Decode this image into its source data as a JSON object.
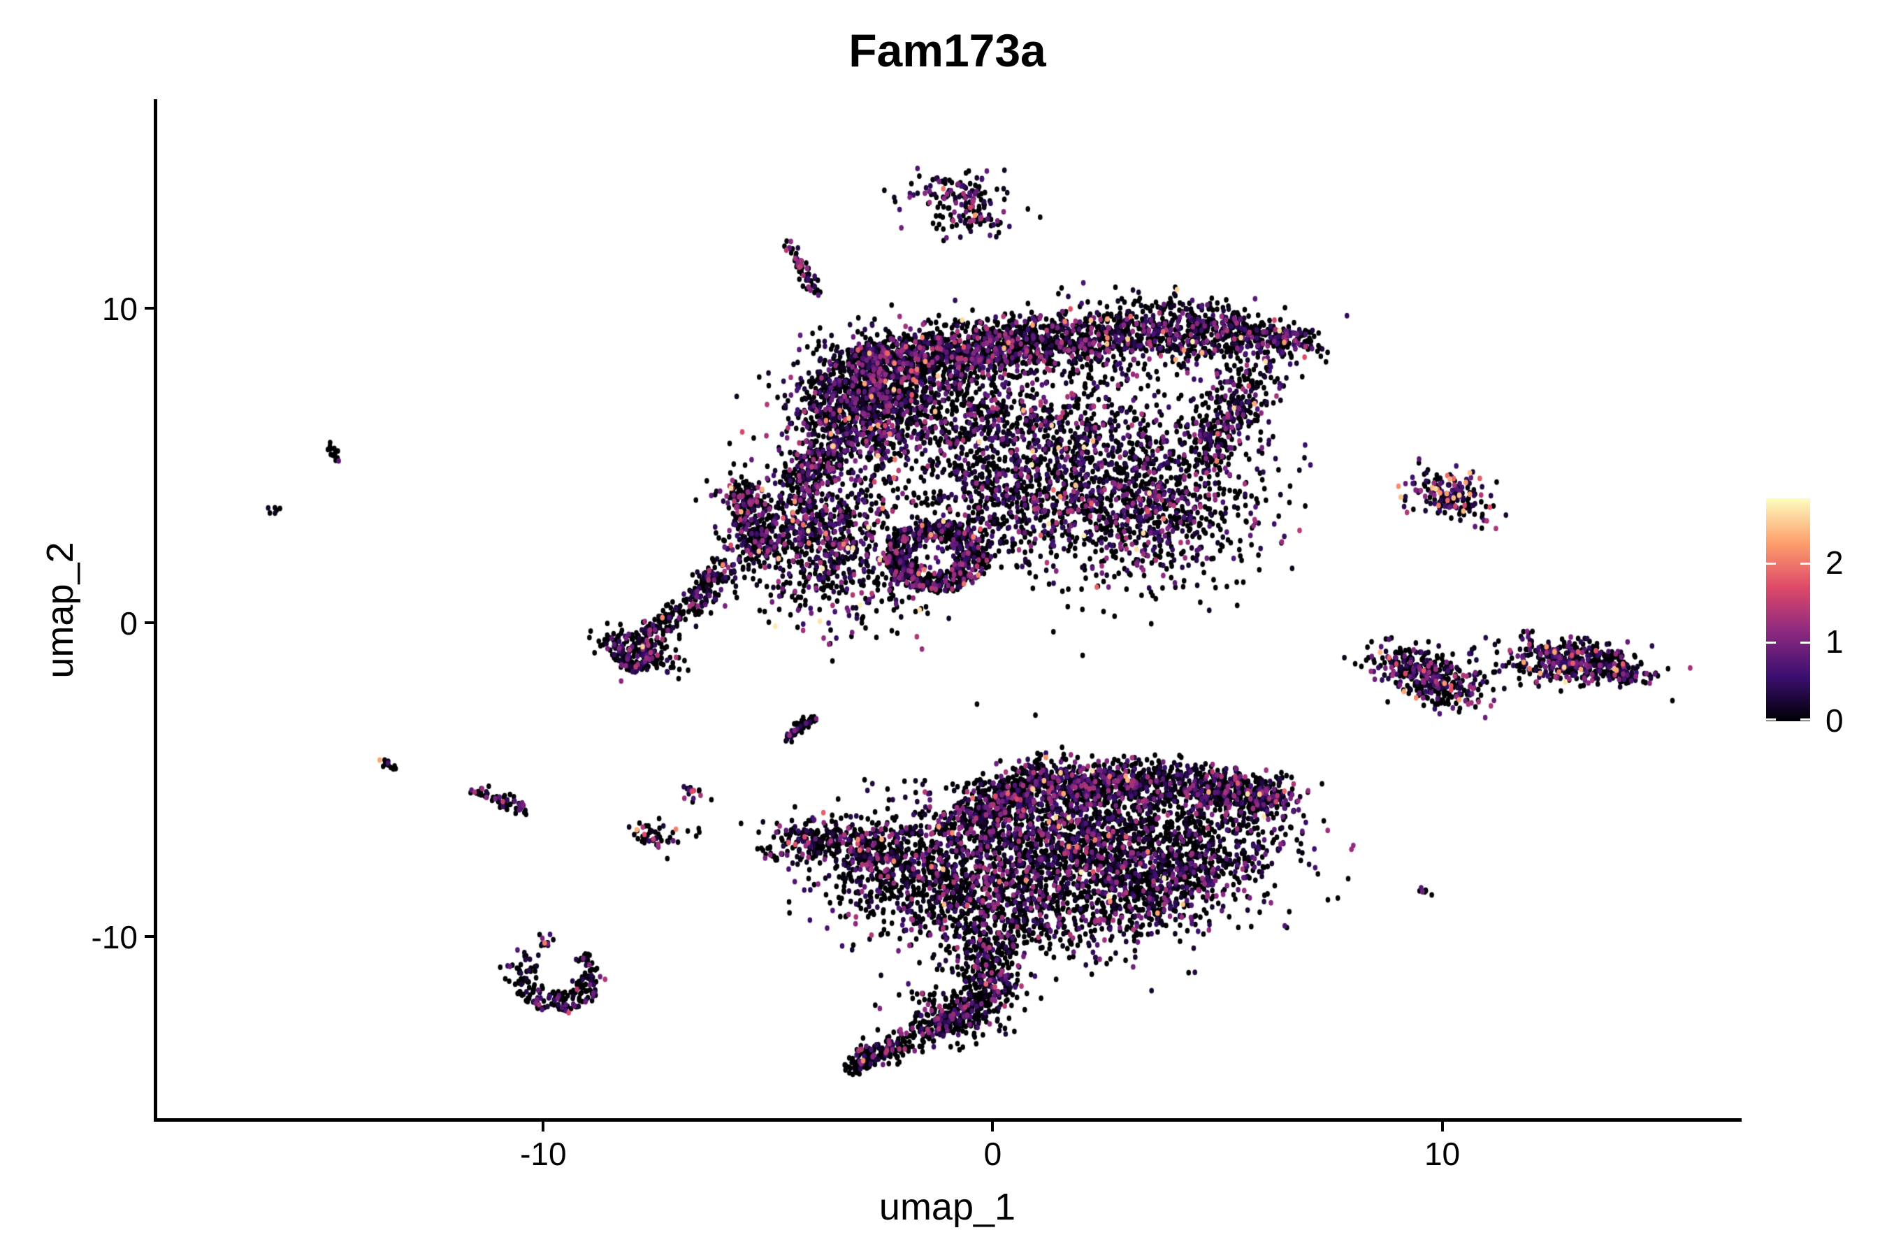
{
  "title": "Fam173a",
  "axes": {
    "x_label": "umap_1",
    "y_label": "umap_2",
    "x_ticks": [
      -10,
      0,
      10
    ],
    "y_ticks": [
      10,
      0,
      -10
    ]
  },
  "legend": {
    "tick_values": [
      0,
      1,
      2
    ],
    "domain_max": 2.82
  },
  "chart_data": {
    "type": "scatter",
    "title": "Fam173a",
    "xlabel": "umap_1",
    "ylabel": "umap_2",
    "xlim": [
      -18.62,
      16.6
    ],
    "ylim": [
      -15.82,
      16.6
    ],
    "grid": false,
    "point_rx": 3.3,
    "point_ry": 4.0,
    "colorbar": {
      "label_values": [
        0,
        1,
        2
      ],
      "domain": [
        0,
        2.82
      ],
      "colormap": "magma",
      "position": "right"
    },
    "colormap_stops": [
      [
        0.0,
        "#000004"
      ],
      [
        0.2,
        "#3b0f70"
      ],
      [
        0.4,
        "#8c2981"
      ],
      [
        0.6,
        "#de4968"
      ],
      [
        0.8,
        "#fe9f6d"
      ],
      [
        1.0,
        "#fcfdbf"
      ]
    ],
    "clusters": [
      {
        "name": "top-blob",
        "kind": "blob",
        "cx": -0.75,
        "cy": 13.55,
        "sx": 0.55,
        "sy": 0.42,
        "rot": -10,
        "n": 120,
        "p0": 0.6,
        "hot": 0.03
      },
      {
        "name": "top-blob-lower",
        "kind": "blob",
        "cx": -0.4,
        "cy": 12.75,
        "sx": 0.5,
        "sy": 0.3,
        "rot": 0,
        "n": 45,
        "p0": 0.65,
        "hot": 0.02
      },
      {
        "name": "streak-upper",
        "kind": "line",
        "x1": -4.56,
        "y1": 12.0,
        "x2": -3.95,
        "y2": 10.55,
        "w": 0.1,
        "n": 60,
        "p0": 0.5,
        "hot": 0.02
      },
      {
        "name": "knot-left",
        "kind": "blob",
        "cx": -2.95,
        "cy": 7.0,
        "sx": 0.75,
        "sy": 0.95,
        "rot": -15,
        "n": 950,
        "p0": 0.58,
        "hot": 0.03
      },
      {
        "name": "band-left",
        "kind": "line",
        "x1": -3.05,
        "y1": 8.2,
        "x2": 1.0,
        "y2": 8.95,
        "w": 0.42,
        "n": 1050,
        "p0": 0.58,
        "hot": 0.03
      },
      {
        "name": "band-right",
        "kind": "line",
        "x1": 1.0,
        "y1": 8.95,
        "x2": 5.2,
        "y2": 9.3,
        "w": 0.5,
        "n": 800,
        "p0": 0.58,
        "hot": 0.03
      },
      {
        "name": "band-tip",
        "kind": "line",
        "x1": 5.2,
        "y1": 9.25,
        "x2": 6.9,
        "y2": 8.85,
        "w": 0.33,
        "n": 280,
        "p0": 0.6,
        "hot": 0.03
      },
      {
        "name": "under-band",
        "kind": "blob",
        "cx": -1.2,
        "cy": 6.9,
        "sx": 1.25,
        "sy": 0.95,
        "rot": 0,
        "n": 480,
        "p0": 0.62,
        "hot": 0.02
      },
      {
        "name": "mid-field",
        "kind": "blob",
        "cx": 1.6,
        "cy": 5.3,
        "sx": 1.9,
        "sy": 1.55,
        "rot": -8,
        "n": 1300,
        "p0": 0.6,
        "hot": 0.025
      },
      {
        "name": "right-arc",
        "kind": "line",
        "x1": 5.9,
        "y1": 8.0,
        "x2": 4.6,
        "y2": 5.2,
        "w": 0.38,
        "n": 300,
        "p0": 0.62,
        "hot": 0.02
      },
      {
        "name": "right-lobe",
        "kind": "blob",
        "cx": 3.4,
        "cy": 3.4,
        "sx": 1.25,
        "sy": 1.15,
        "rot": 0,
        "n": 650,
        "p0": 0.6,
        "hot": 0.03
      },
      {
        "name": "neck-top",
        "kind": "line",
        "x1": -3.35,
        "y1": 5.9,
        "x2": -4.4,
        "y2": 4.2,
        "w": 0.3,
        "n": 240,
        "p0": 0.6,
        "hot": 0.02
      },
      {
        "name": "left-mid",
        "kind": "blob",
        "cx": -4.0,
        "cy": 3.1,
        "sx": 1.0,
        "sy": 0.8,
        "rot": 5,
        "n": 600,
        "p0": 0.55,
        "hot": 0.04
      },
      {
        "name": "left-mid-wall",
        "kind": "line",
        "x1": -5.6,
        "y1": 4.3,
        "x2": -5.15,
        "y2": 2.0,
        "w": 0.22,
        "n": 230,
        "p0": 0.6,
        "hot": 0.02
      },
      {
        "name": "left-mid-skirt",
        "kind": "blob",
        "cx": -3.3,
        "cy": 1.3,
        "sx": 1.05,
        "sy": 0.8,
        "rot": 0,
        "n": 280,
        "p0": 0.58,
        "hot": 0.05
      },
      {
        "name": "left-mid-tail",
        "kind": "line",
        "x1": -6.0,
        "y1": 1.8,
        "x2": -6.75,
        "y2": 0.5,
        "w": 0.2,
        "n": 120,
        "p0": 0.62,
        "hot": 0.02
      },
      {
        "name": "ring-lower",
        "kind": "ring",
        "cx": -1.25,
        "cy": 2.1,
        "r0": 0.5,
        "r1": 1.15,
        "a0": 0,
        "a1": 360,
        "n": 620,
        "p0": 0.6,
        "hot": 0.03
      },
      {
        "name": "connector",
        "kind": "blob",
        "cx": 0.3,
        "cy": 3.5,
        "sx": 0.9,
        "sy": 0.85,
        "rot": 0,
        "n": 240,
        "p0": 0.62,
        "hot": 0.02
      },
      {
        "name": "hook",
        "kind": "blob",
        "cx": -7.95,
        "cy": -0.85,
        "sx": 0.5,
        "sy": 0.3,
        "rot": -20,
        "n": 150,
        "p0": 0.68,
        "hot": 0.02
      },
      {
        "name": "hook-curl",
        "kind": "ring",
        "cx": -7.95,
        "cy": -1.15,
        "r0": 0.18,
        "r1": 0.42,
        "a0": 120,
        "a1": 420,
        "n": 90,
        "p0": 0.68,
        "hot": 0.02
      },
      {
        "name": "hook-chain",
        "kind": "line",
        "x1": -6.75,
        "y1": 0.5,
        "x2": -7.9,
        "y2": -0.7,
        "w": 0.22,
        "n": 130,
        "p0": 0.7,
        "hot": 0.01
      },
      {
        "name": "mid-streak",
        "kind": "line",
        "x1": -4.65,
        "y1": -3.72,
        "x2": -3.97,
        "y2": -3.02,
        "w": 0.07,
        "n": 55,
        "p0": 0.72,
        "hot": 0.01
      },
      {
        "name": "b-nose-dash",
        "kind": "line",
        "x1": -5.15,
        "y1": -7.25,
        "x2": -4.75,
        "y2": -7.5,
        "w": 0.08,
        "n": 14,
        "p0": 0.8,
        "hot": 0
      },
      {
        "name": "b-nose",
        "kind": "line",
        "x1": -4.65,
        "y1": -6.8,
        "x2": -2.4,
        "y2": -7.3,
        "w": 0.32,
        "n": 280,
        "p0": 0.62,
        "hot": 0.03
      },
      {
        "name": "b-left-body",
        "kind": "blob",
        "cx": -1.5,
        "cy": -8.0,
        "sx": 1.1,
        "sy": 1.0,
        "rot": 0,
        "n": 800,
        "p0": 0.62,
        "hot": 0.02,
        "ymax": -6.1
      },
      {
        "name": "b-main-body",
        "kind": "blob",
        "cx": 2.1,
        "cy": -7.0,
        "sx": 1.9,
        "sy": 1.2,
        "rot": -8,
        "n": 2100,
        "p0": 0.6,
        "hot": 0.02,
        "ymax": -5.0
      },
      {
        "name": "b-top-band",
        "kind": "line",
        "x1": 0.6,
        "y1": -5.05,
        "x2": 4.35,
        "y2": -5.1,
        "w": 0.38,
        "n": 650,
        "p0": 0.6,
        "hot": 0.02
      },
      {
        "name": "b-topleft-edge",
        "kind": "line",
        "x1": -0.6,
        "y1": -6.2,
        "x2": 0.7,
        "y2": -5.3,
        "w": 0.3,
        "n": 200,
        "p0": 0.6,
        "hot": 0.02
      },
      {
        "name": "b-right-tip",
        "kind": "line",
        "x1": 4.5,
        "y1": -5.1,
        "x2": 6.35,
        "y2": -5.55,
        "w": 0.35,
        "n": 320,
        "p0": 0.58,
        "hot": 0.03
      },
      {
        "name": "b-tip-knot",
        "kind": "blob",
        "cx": 6.1,
        "cy": -5.55,
        "sx": 0.3,
        "sy": 0.28,
        "rot": 0,
        "n": 80,
        "p0": 0.55,
        "hot": 0.05
      },
      {
        "name": "b-diag-lower",
        "kind": "line",
        "x1": 2.5,
        "y1": -9.7,
        "x2": 5.7,
        "y2": -6.7,
        "w": 0.55,
        "n": 420,
        "p0": 0.64,
        "hot": 0.015
      },
      {
        "name": "b-lower-bulge",
        "kind": "blob",
        "cx": 0.8,
        "cy": -9.3,
        "sx": 1.2,
        "sy": 0.8,
        "rot": 0,
        "n": 450,
        "p0": 0.66,
        "hot": 0.015
      },
      {
        "name": "b-neck",
        "kind": "line",
        "x1": 0.0,
        "y1": -10.0,
        "x2": -0.2,
        "y2": -12.4,
        "w": 0.38,
        "n": 340,
        "p0": 0.72,
        "hot": 0.01
      },
      {
        "name": "b-bend",
        "kind": "blob",
        "cx": -1.0,
        "cy": -12.5,
        "sx": 0.55,
        "sy": 0.4,
        "rot": -30,
        "n": 140,
        "p0": 0.7,
        "hot": 0.01
      },
      {
        "name": "b-tail",
        "kind": "line",
        "x1": -0.5,
        "y1": -12.35,
        "x2": -2.6,
        "y2": -13.75,
        "w": 0.22,
        "n": 240,
        "p0": 0.75,
        "hot": 0.008
      },
      {
        "name": "b-tail-tip",
        "kind": "line",
        "x1": -2.6,
        "y1": -13.7,
        "x2": -3.1,
        "y2": -14.2,
        "w": 0.14,
        "n": 80,
        "p0": 0.78,
        "hot": 0.005
      },
      {
        "name": "r-upper",
        "kind": "blob",
        "cx": 10.2,
        "cy": 4.05,
        "sx": 0.5,
        "sy": 0.38,
        "rot": -30,
        "n": 170,
        "p0": 0.42,
        "hot": 0.15
      },
      {
        "name": "r-mid-left",
        "kind": "blob",
        "cx": 9.75,
        "cy": -1.7,
        "sx": 0.72,
        "sy": 0.38,
        "rot": -33,
        "n": 360,
        "p0": 0.55,
        "hot": 0.06
      },
      {
        "name": "r-bridge",
        "kind": "line",
        "x1": 11.15,
        "y1": -1.35,
        "x2": 12.0,
        "y2": -1.5,
        "w": 0.05,
        "n": 7,
        "p0": 0.7,
        "hot": 0
      },
      {
        "name": "r-mid-right",
        "kind": "blob",
        "cx": 13.0,
        "cy": -1.25,
        "sx": 0.78,
        "sy": 0.36,
        "rot": -12,
        "n": 430,
        "p0": 0.56,
        "hot": 0.06
      },
      {
        "name": "r-tip",
        "kind": "line",
        "x1": 13.9,
        "y1": -1.6,
        "x2": 14.25,
        "y2": -1.85,
        "w": 0.12,
        "n": 50,
        "p0": 0.6,
        "hot": 0.04
      },
      {
        "name": "r-lower-dash",
        "kind": "line",
        "x1": 9.5,
        "y1": -8.45,
        "x2": 9.72,
        "y2": -8.72,
        "w": 0.05,
        "n": 9,
        "p0": 0.85,
        "hot": 0
      },
      {
        "name": "s-dash-upleft",
        "kind": "line",
        "x1": -14.85,
        "y1": 5.7,
        "x2": -14.5,
        "y2": 5.15,
        "w": 0.06,
        "n": 14,
        "p0": 0.85,
        "hot": 0
      },
      {
        "name": "s-dots-left",
        "kind": "blob",
        "cx": -15.95,
        "cy": 3.55,
        "sx": 0.1,
        "sy": 0.07,
        "rot": -30,
        "n": 6,
        "p0": 0.8,
        "hot": 0
      },
      {
        "name": "s-dash-lowleft",
        "kind": "line",
        "x1": -13.6,
        "y1": -4.4,
        "x2": -13.28,
        "y2": -4.72,
        "w": 0.06,
        "n": 12,
        "p0": 0.85,
        "hot": 0
      },
      {
        "name": "s-streak-low",
        "kind": "line",
        "x1": -11.55,
        "y1": -5.3,
        "x2": -10.4,
        "y2": -6.0,
        "w": 0.09,
        "n": 55,
        "p0": 0.7,
        "hot": 0.01
      },
      {
        "name": "s-magenta-blob",
        "kind": "blob",
        "cx": -6.6,
        "cy": -5.45,
        "sx": 0.16,
        "sy": 0.12,
        "rot": 0,
        "n": 14,
        "p0": 0.55,
        "hot": 0.1
      },
      {
        "name": "s-orange-cluster",
        "kind": "blob",
        "cx": -7.6,
        "cy": -6.8,
        "sx": 0.28,
        "sy": 0.25,
        "rot": 0,
        "n": 40,
        "p0": 0.62,
        "hot": 0.02
      },
      {
        "name": "s-trail-dots",
        "kind": "line",
        "x1": -7.25,
        "y1": -6.85,
        "x2": -6.5,
        "y2": -6.65,
        "w": 0.08,
        "n": 6,
        "p0": 0.9,
        "hot": 0
      },
      {
        "name": "smile-main",
        "kind": "ring",
        "cx": -9.7,
        "cy": -11.3,
        "r0": 0.45,
        "r1": 1.05,
        "a0": 180,
        "a1": 360,
        "n": 150,
        "p0": 0.7,
        "hot": 0.01
      },
      {
        "name": "smile-right-hook",
        "kind": "ring",
        "cx": -9.7,
        "cy": -11.3,
        "r0": 0.65,
        "r1": 1.0,
        "a0": 0,
        "a1": 55,
        "n": 30,
        "p0": 0.7,
        "hot": 0.01
      },
      {
        "name": "smile-topleft",
        "kind": "blob",
        "cx": -9.95,
        "cy": -10.15,
        "sx": 0.13,
        "sy": 0.13,
        "rot": 0,
        "n": 10,
        "p0": 0.6,
        "hot": 0.03
      },
      {
        "name": "smile-left",
        "kind": "blob",
        "cx": -10.45,
        "cy": -11.0,
        "sx": 0.2,
        "sy": 0.25,
        "rot": 0,
        "n": 26,
        "p0": 0.7,
        "hot": 0.01
      }
    ],
    "stray_points": [
      [
        -5.6,
        -6.4
      ],
      [
        -4.8,
        -6.4
      ],
      [
        0.95,
        -2.95
      ],
      [
        -0.35,
        -2.6
      ],
      [
        2.0,
        -1.05
      ],
      [
        -2.1,
        -13.25
      ],
      [
        1.35,
        -0.3
      ]
    ],
    "accent_points": [
      [
        -13.64,
        -4.38,
        2.3
      ],
      [
        -7.92,
        -6.6,
        2.35
      ],
      [
        -7.75,
        -6.75,
        1.7
      ],
      [
        -7.55,
        -6.9,
        1.5
      ],
      [
        -6.65,
        -5.35,
        1.6
      ],
      [
        -6.5,
        -5.5,
        1.3
      ],
      [
        -9.97,
        -10.2,
        2.0
      ],
      [
        -10.02,
        -10.05,
        1.0
      ],
      [
        9.78,
        4.28,
        2.45
      ],
      [
        9.95,
        4.12,
        2.2
      ],
      [
        10.12,
        3.88,
        1.9
      ],
      [
        10.38,
        4.05,
        2.5
      ],
      [
        9.92,
        3.72,
        2.0
      ],
      [
        10.5,
        3.72,
        1.6
      ],
      [
        8.62,
        -0.95,
        2.4
      ],
      [
        8.82,
        -1.12,
        1.9
      ],
      [
        9.15,
        -2.2,
        2.3
      ],
      [
        9.42,
        -2.4,
        2.1
      ],
      [
        8.98,
        -1.32,
        1.6
      ],
      [
        10.2,
        -2.15,
        1.7
      ],
      [
        12.32,
        -0.78,
        2.2
      ],
      [
        12.6,
        -1.58,
        2.05
      ],
      [
        13.88,
        -1.52,
        2.3
      ],
      [
        13.42,
        -0.9,
        1.75
      ],
      [
        12.18,
        -1.62,
        2.35
      ],
      [
        14.02,
        -1.32,
        1.8
      ],
      [
        -1.5,
        8.3,
        2.2
      ],
      [
        0.35,
        8.9,
        2.05
      ],
      [
        2.55,
        9.05,
        2.1
      ],
      [
        -2.85,
        7.6,
        2.3
      ],
      [
        -3.2,
        6.5,
        2.4
      ],
      [
        1.5,
        4.0,
        2.2
      ],
      [
        3.8,
        3.3,
        2.0
      ],
      [
        -2.2,
        4.6,
        1.9
      ],
      [
        -2.95,
        0.55,
        2.75
      ],
      [
        -4.45,
        3.25,
        2.25
      ],
      [
        -1.65,
        1.55,
        2.0
      ],
      [
        -7.35,
        0.15,
        2.1
      ],
      [
        5.0,
        6.0,
        1.8
      ],
      [
        -1.2,
        -6.5,
        2.2
      ],
      [
        -0.9,
        -6.7,
        2.1
      ],
      [
        1.25,
        -6.35,
        2.2
      ],
      [
        3.45,
        -7.3,
        2.0
      ],
      [
        0.15,
        -8.25,
        1.95
      ],
      [
        -2.2,
        -7.6,
        2.1
      ],
      [
        6.3,
        -5.7,
        1.6
      ],
      [
        2.6,
        -4.9,
        1.9
      ],
      [
        -0.15,
        -11.5,
        1.9
      ],
      [
        0.05,
        -11.6,
        1.55
      ],
      [
        -1.45,
        -12.95,
        1.35
      ],
      [
        -1.1,
        13.8,
        2.0
      ],
      [
        -0.5,
        13.2,
        1.6
      ],
      [
        -4.3,
        11.3,
        1.5
      ],
      [
        -10.9,
        -5.7,
        1.5
      ]
    ]
  }
}
